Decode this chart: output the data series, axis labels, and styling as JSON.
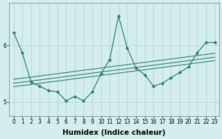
{
  "xlabel": "Humidex (Indice chaleur)",
  "background_color": "#d4eeed",
  "grid_color": "#b8d8d6",
  "line_color": "#2a7a70",
  "x": [
    0,
    1,
    2,
    3,
    4,
    5,
    6,
    7,
    8,
    9,
    10,
    11,
    12,
    13,
    14,
    15,
    16,
    17,
    18,
    19,
    20,
    21,
    22,
    23
  ],
  "y_main": [
    6.23,
    5.87,
    5.35,
    5.28,
    5.2,
    5.18,
    5.02,
    5.1,
    5.02,
    5.18,
    5.5,
    5.75,
    6.52,
    5.95,
    5.6,
    5.48,
    5.28,
    5.33,
    5.43,
    5.52,
    5.62,
    5.87,
    6.05,
    6.05
  ],
  "y_trend1": [
    5.4,
    5.42,
    5.44,
    5.46,
    5.48,
    5.5,
    5.52,
    5.54,
    5.56,
    5.58,
    5.6,
    5.62,
    5.64,
    5.66,
    5.68,
    5.7,
    5.72,
    5.74,
    5.76,
    5.78,
    5.8,
    5.82,
    5.84,
    5.86
  ],
  "y_trend2": [
    5.33,
    5.35,
    5.37,
    5.39,
    5.41,
    5.43,
    5.45,
    5.47,
    5.49,
    5.51,
    5.53,
    5.55,
    5.57,
    5.59,
    5.61,
    5.63,
    5.65,
    5.67,
    5.69,
    5.71,
    5.73,
    5.75,
    5.77,
    5.79
  ],
  "y_trend3": [
    5.27,
    5.29,
    5.31,
    5.33,
    5.35,
    5.37,
    5.39,
    5.41,
    5.43,
    5.45,
    5.47,
    5.49,
    5.51,
    5.53,
    5.55,
    5.57,
    5.59,
    5.61,
    5.63,
    5.65,
    5.67,
    5.69,
    5.71,
    5.73
  ],
  "ylim": [
    4.75,
    6.75
  ],
  "yticks": [
    5.0,
    6.0
  ],
  "yticklabels": [
    "5",
    "6"
  ],
  "xticks": [
    0,
    1,
    2,
    3,
    4,
    5,
    6,
    7,
    8,
    9,
    10,
    11,
    12,
    13,
    14,
    15,
    16,
    17,
    18,
    19,
    20,
    21,
    22,
    23
  ],
  "xticklabels": [
    "0",
    "1",
    "2",
    "3",
    "4",
    "5",
    "6",
    "7",
    "8",
    "9",
    "10",
    "11",
    "12",
    "13",
    "14",
    "15",
    "16",
    "17",
    "18",
    "19",
    "20",
    "21",
    "22",
    "23"
  ],
  "tick_fontsize": 5.5,
  "xlabel_fontsize": 7.5
}
